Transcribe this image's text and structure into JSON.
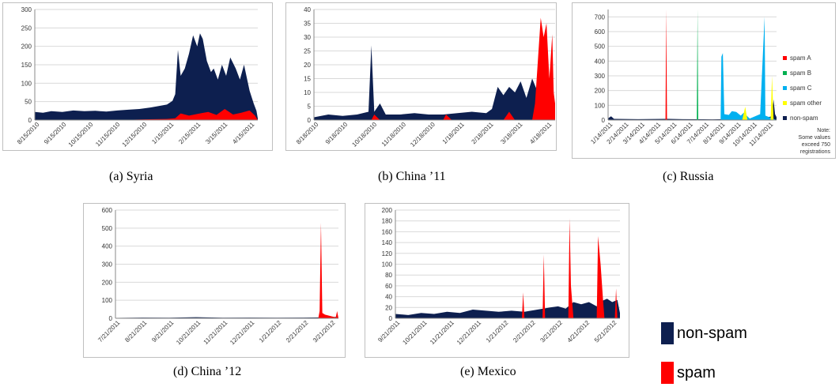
{
  "colors": {
    "nonspam": "#0d1f4f",
    "spam": "#ff0000",
    "spamA": "#ff0000",
    "spamB": "#00b050",
    "spamC": "#00b0f0",
    "spamOther": "#ffff00",
    "grid": "#d9d9d9",
    "axis": "#888888"
  },
  "legend": {
    "nonspam_label": "non-spam",
    "spam_label": "spam"
  },
  "russia_legend": {
    "spam_a": "spam A",
    "spam_b": "spam B",
    "spam_c": "spam C",
    "spam_other": "spam other",
    "non_spam": "non-spam"
  },
  "russia_note": {
    "line1": "Note:",
    "line2": "Some values",
    "line3": "exceed 750",
    "line4": "registrations"
  },
  "chart_data": [
    {
      "id": "syria",
      "type": "area",
      "caption": "(a)  Syria",
      "ylim": [
        0,
        300
      ],
      "yticks": [
        0,
        50,
        100,
        150,
        200,
        250,
        300
      ],
      "xticks": [
        "8/15/2010",
        "9/15/2010",
        "10/15/2010",
        "11/15/2010",
        "12/15/2010",
        "1/15/2011",
        "2/15/2011",
        "3/15/2011",
        "4/15/2011"
      ],
      "x_range": [
        0,
        8.1
      ],
      "series": [
        {
          "key": "nonspam",
          "points": [
            [
              0,
              22
            ],
            [
              0.3,
              20
            ],
            [
              0.6,
              24
            ],
            [
              1,
              22
            ],
            [
              1.4,
              26
            ],
            [
              1.8,
              24
            ],
            [
              2.2,
              25
            ],
            [
              2.6,
              23
            ],
            [
              3,
              26
            ],
            [
              3.4,
              28
            ],
            [
              3.8,
              30
            ],
            [
              4.2,
              34
            ],
            [
              4.5,
              38
            ],
            [
              4.8,
              42
            ],
            [
              5,
              52
            ],
            [
              5.1,
              70
            ],
            [
              5.2,
              190
            ],
            [
              5.3,
              120
            ],
            [
              5.45,
              140
            ],
            [
              5.6,
              180
            ],
            [
              5.75,
              230
            ],
            [
              5.9,
              200
            ],
            [
              6,
              235
            ],
            [
              6.1,
              220
            ],
            [
              6.25,
              160
            ],
            [
              6.4,
              130
            ],
            [
              6.5,
              140
            ],
            [
              6.65,
              110
            ],
            [
              6.8,
              150
            ],
            [
              6.95,
              120
            ],
            [
              7.1,
              170
            ],
            [
              7.3,
              140
            ],
            [
              7.45,
              110
            ],
            [
              7.6,
              150
            ],
            [
              7.8,
              80
            ],
            [
              7.95,
              45
            ],
            [
              8.05,
              25
            ],
            [
              8.1,
              5
            ]
          ]
        },
        {
          "key": "spam",
          "points": [
            [
              0,
              0
            ],
            [
              3,
              0
            ],
            [
              4,
              2
            ],
            [
              4.8,
              3
            ],
            [
              5.1,
              5
            ],
            [
              5.3,
              18
            ],
            [
              5.6,
              12
            ],
            [
              6,
              18
            ],
            [
              6.3,
              22
            ],
            [
              6.6,
              14
            ],
            [
              6.9,
              30
            ],
            [
              7.2,
              15
            ],
            [
              7.5,
              20
            ],
            [
              7.8,
              26
            ],
            [
              8,
              12
            ],
            [
              8.1,
              0
            ]
          ]
        }
      ]
    },
    {
      "id": "china11",
      "type": "area",
      "caption": "(b)  China ’11",
      "ylim": [
        0,
        40
      ],
      "yticks": [
        0,
        5,
        10,
        15,
        20,
        25,
        30,
        35,
        40
      ],
      "xticks": [
        "8/18/2010",
        "9/18/2010",
        "10/18/2010",
        "11/18/2010",
        "12/18/2010",
        "1/18/2011",
        "2/18/2011",
        "3/18/2011",
        "4/18/2011"
      ],
      "x_range": [
        0,
        8.4
      ],
      "series": [
        {
          "key": "nonspam",
          "points": [
            [
              0,
              1
            ],
            [
              0.5,
              2
            ],
            [
              1,
              1.5
            ],
            [
              1.5,
              2
            ],
            [
              1.9,
              3
            ],
            [
              2,
              27
            ],
            [
              2.1,
              3
            ],
            [
              2.3,
              6
            ],
            [
              2.5,
              2
            ],
            [
              3,
              2
            ],
            [
              3.5,
              2.5
            ],
            [
              4,
              2
            ],
            [
              4.5,
              2
            ],
            [
              5,
              2.5
            ],
            [
              5.5,
              3
            ],
            [
              6,
              2.5
            ],
            [
              6.2,
              4
            ],
            [
              6.4,
              12
            ],
            [
              6.6,
              9
            ],
            [
              6.8,
              12
            ],
            [
              7,
              10
            ],
            [
              7.2,
              14
            ],
            [
              7.4,
              8
            ],
            [
              7.6,
              15
            ],
            [
              7.8,
              10
            ],
            [
              8,
              12
            ],
            [
              8.2,
              8
            ],
            [
              8.4,
              5
            ]
          ]
        },
        {
          "key": "spam",
          "points": [
            [
              0,
              0
            ],
            [
              2,
              0
            ],
            [
              2.1,
              2
            ],
            [
              2.3,
              0
            ],
            [
              4.5,
              0
            ],
            [
              4.6,
              2
            ],
            [
              4.8,
              0
            ],
            [
              6.6,
              0
            ],
            [
              6.8,
              3
            ],
            [
              7,
              0
            ],
            [
              7.6,
              0
            ],
            [
              7.7,
              6
            ],
            [
              7.9,
              37
            ],
            [
              8.0,
              30
            ],
            [
              8.1,
              35
            ],
            [
              8.2,
              15
            ],
            [
              8.3,
              31
            ],
            [
              8.35,
              10
            ],
            [
              8.4,
              6
            ]
          ]
        }
      ]
    },
    {
      "id": "russia",
      "type": "area",
      "caption": "(c)  Russia",
      "ylim": [
        0,
        750
      ],
      "yticks": [
        0,
        100,
        200,
        300,
        400,
        500,
        600,
        700
      ],
      "xticks": [
        "1/14/2011",
        "2/14/2011",
        "3/14/2011",
        "4/14/2011",
        "5/14/2011",
        "6/14/2011",
        "7/14/2011",
        "8/14/2011",
        "9/14/2011",
        "10/14/2011",
        "11/14/2011"
      ],
      "x_range": [
        0,
        11.3
      ],
      "series": [
        {
          "key": "nonspam",
          "points": [
            [
              0,
              12
            ],
            [
              0.2,
              25
            ],
            [
              0.4,
              8
            ],
            [
              2,
              6
            ],
            [
              4,
              8
            ],
            [
              5,
              6
            ],
            [
              7,
              5
            ],
            [
              9,
              8
            ],
            [
              10,
              10
            ],
            [
              10.5,
              15
            ],
            [
              11,
              25
            ],
            [
              11.1,
              140
            ],
            [
              11.2,
              40
            ],
            [
              11.3,
              20
            ]
          ]
        },
        {
          "key": "spamA",
          "points": [
            [
              0,
              0
            ],
            [
              3.85,
              0
            ],
            [
              3.9,
              760
            ],
            [
              3.95,
              0
            ],
            [
              11.3,
              0
            ]
          ]
        },
        {
          "key": "spamB",
          "points": [
            [
              0,
              0
            ],
            [
              5.95,
              0
            ],
            [
              6,
              760
            ],
            [
              6.05,
              0
            ],
            [
              11.3,
              0
            ]
          ]
        },
        {
          "key": "spamC",
          "points": [
            [
              0,
              0
            ],
            [
              7.55,
              0
            ],
            [
              7.6,
              430
            ],
            [
              7.7,
              455
            ],
            [
              7.8,
              40
            ],
            [
              8.1,
              35
            ],
            [
              8.3,
              60
            ],
            [
              8.6,
              55
            ],
            [
              8.9,
              30
            ],
            [
              9.1,
              50
            ],
            [
              9.5,
              10
            ],
            [
              10.2,
              40
            ],
            [
              10.5,
              700
            ],
            [
              10.55,
              30
            ],
            [
              11.3,
              0
            ]
          ]
        },
        {
          "key": "spamOther",
          "points": [
            [
              0,
              0
            ],
            [
              9,
              0
            ],
            [
              9.2,
              90
            ],
            [
              9.35,
              0
            ],
            [
              10.9,
              0
            ],
            [
              11,
              300
            ],
            [
              11.1,
              0
            ]
          ]
        }
      ]
    },
    {
      "id": "china12",
      "type": "area",
      "caption": "(d)  China ’12",
      "ylim": [
        0,
        600
      ],
      "yticks": [
        0,
        100,
        200,
        300,
        400,
        500,
        600
      ],
      "xticks": [
        "7/21/2011",
        "8/21/2011",
        "9/21/2011",
        "10/21/2011",
        "11/21/2011",
        "12/21/2011",
        "1/21/2012",
        "2/21/2012",
        "3/21/2012"
      ],
      "x_range": [
        0,
        8.3
      ],
      "series": [
        {
          "key": "nonspam",
          "points": [
            [
              0,
              2
            ],
            [
              1,
              4
            ],
            [
              2,
              3
            ],
            [
              3,
              6
            ],
            [
              4,
              3
            ],
            [
              5,
              4
            ],
            [
              6,
              3
            ],
            [
              7,
              4
            ],
            [
              7.6,
              5
            ],
            [
              7.8,
              6
            ],
            [
              8.2,
              8
            ],
            [
              8.3,
              4
            ]
          ]
        },
        {
          "key": "spam",
          "points": [
            [
              0,
              0
            ],
            [
              7.55,
              0
            ],
            [
              7.6,
              40
            ],
            [
              7.65,
              530
            ],
            [
              7.7,
              30
            ],
            [
              7.8,
              20
            ],
            [
              8.2,
              5
            ],
            [
              8.25,
              40
            ],
            [
              8.3,
              0
            ]
          ]
        }
      ]
    },
    {
      "id": "mexico",
      "type": "area",
      "caption": "(e)  Mexico",
      "ylim": [
        0,
        200
      ],
      "yticks": [
        0,
        20,
        40,
        60,
        80,
        100,
        120,
        140,
        160,
        180,
        200
      ],
      "xticks": [
        "9/21/2011",
        "10/21/2011",
        "11/21/2011",
        "12/21/2011",
        "1/21/2012",
        "2/21/2012",
        "3/21/2012",
        "4/21/2012",
        "5/21/2012"
      ],
      "x_range": [
        0,
        8.7
      ],
      "series": [
        {
          "key": "nonspam",
          "points": [
            [
              0,
              8
            ],
            [
              0.5,
              6
            ],
            [
              1,
              10
            ],
            [
              1.5,
              8
            ],
            [
              2,
              12
            ],
            [
              2.5,
              10
            ],
            [
              3,
              16
            ],
            [
              3.5,
              14
            ],
            [
              4,
              12
            ],
            [
              4.5,
              14
            ],
            [
              5,
              12
            ],
            [
              5.5,
              16
            ],
            [
              6,
              20
            ],
            [
              6.3,
              22
            ],
            [
              6.6,
              18
            ],
            [
              6.9,
              30
            ],
            [
              7.2,
              26
            ],
            [
              7.5,
              30
            ],
            [
              7.8,
              22
            ],
            [
              8,
              32
            ],
            [
              8.2,
              36
            ],
            [
              8.4,
              30
            ],
            [
              8.6,
              34
            ],
            [
              8.7,
              10
            ]
          ]
        },
        {
          "key": "spam",
          "points": [
            [
              0,
              0
            ],
            [
              4.9,
              0
            ],
            [
              4.95,
              48
            ],
            [
              5,
              0
            ],
            [
              5.7,
              0
            ],
            [
              5.75,
              118
            ],
            [
              5.8,
              0
            ],
            [
              6.7,
              0
            ],
            [
              6.75,
              185
            ],
            [
              6.8,
              60
            ],
            [
              6.9,
              0
            ],
            [
              7.8,
              0
            ],
            [
              7.85,
              152
            ],
            [
              7.95,
              100
            ],
            [
              8.05,
              30
            ],
            [
              8.1,
              0
            ],
            [
              8.5,
              0
            ],
            [
              8.55,
              55
            ],
            [
              8.6,
              0
            ],
            [
              8.7,
              0
            ]
          ]
        }
      ]
    }
  ]
}
